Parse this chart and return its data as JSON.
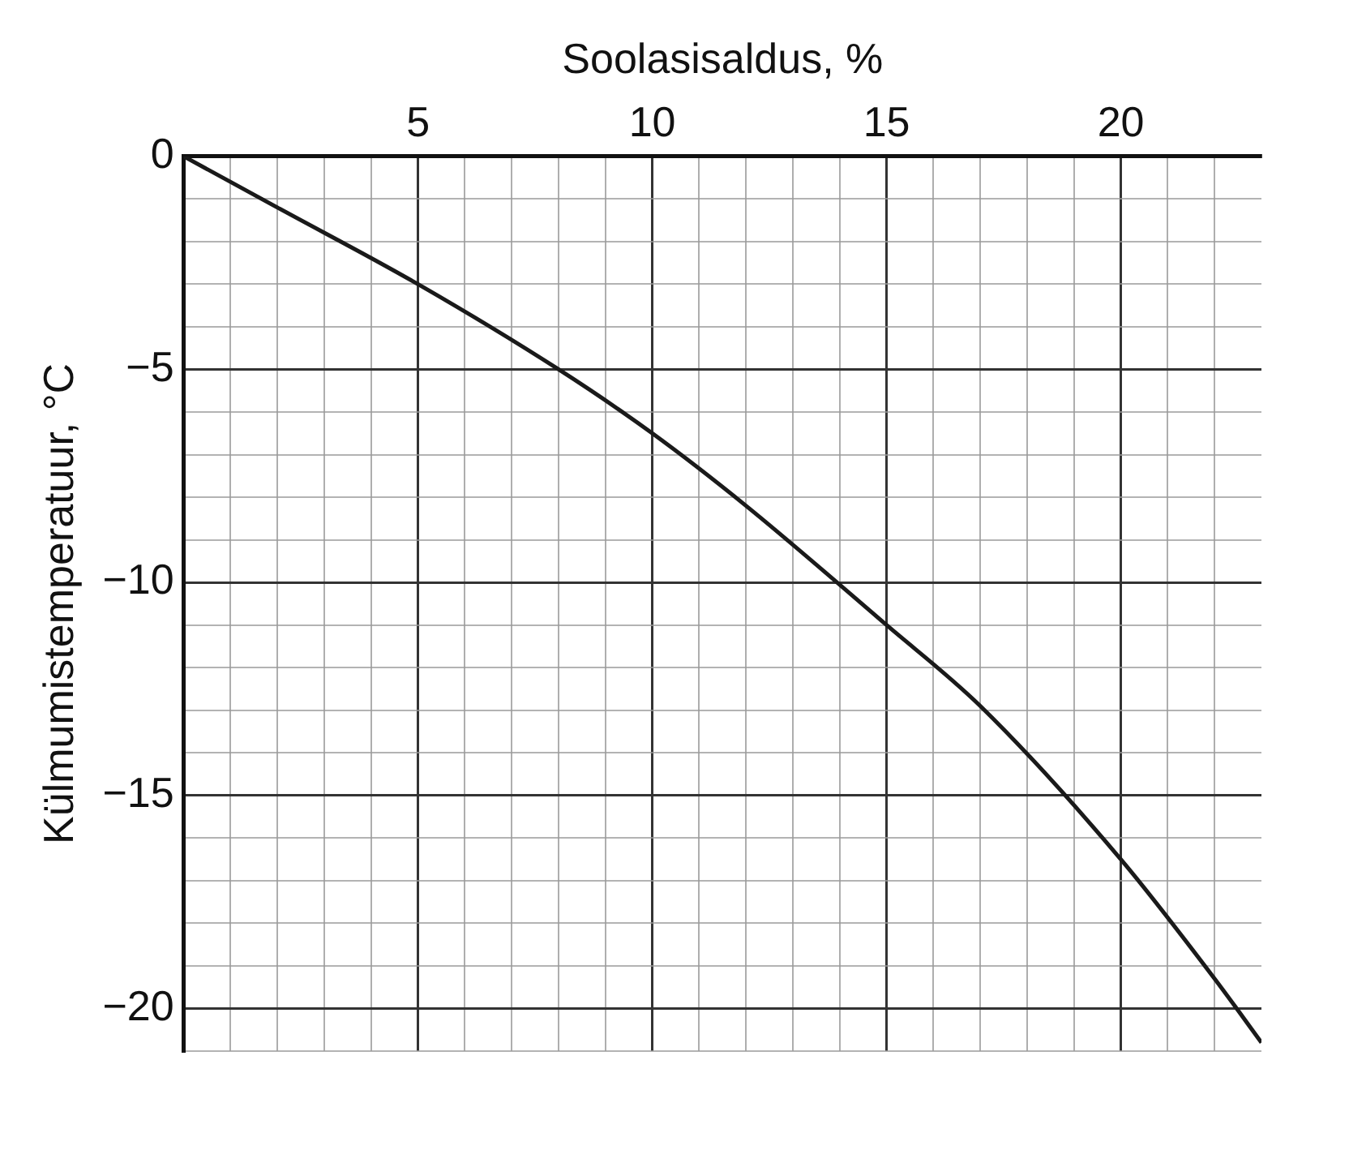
{
  "chart_data": {
    "type": "line",
    "xlabel": "Soolasisaldus, %",
    "ylabel": "Külmumistemperatuur, °C",
    "xlim": [
      0,
      23
    ],
    "ylim": [
      -21,
      0
    ],
    "xticks": [
      {
        "value": 1,
        "label": null
      },
      {
        "value": 2,
        "label": null
      },
      {
        "value": 3,
        "label": null
      },
      {
        "value": 4,
        "label": null
      },
      5,
      {
        "value": 6,
        "label": null
      },
      {
        "value": 7,
        "label": null
      },
      {
        "value": 8,
        "label": null
      },
      {
        "value": 9,
        "label": null
      },
      10,
      {
        "value": 11,
        "label": null
      },
      {
        "value": 12,
        "label": null
      },
      {
        "value": 13,
        "label": null
      },
      {
        "value": 14,
        "label": null
      },
      15,
      {
        "value": 16,
        "label": null
      },
      {
        "value": 17,
        "label": null
      },
      {
        "value": 18,
        "label": null
      },
      {
        "value": 19,
        "label": null
      },
      20,
      {
        "value": 21,
        "label": null
      },
      {
        "value": 22,
        "label": null
      }
    ],
    "yticks": [
      0,
      {
        "value": -1,
        "label": null
      },
      {
        "value": -2,
        "label": null
      },
      {
        "value": -3,
        "label": null
      },
      {
        "value": -4,
        "label": null
      },
      {
        "value": -5,
        "label": "−5"
      },
      {
        "value": -6,
        "label": null
      },
      {
        "value": -7,
        "label": null
      },
      {
        "value": -8,
        "label": null
      },
      {
        "value": -9,
        "label": null
      },
      {
        "value": -10,
        "label": "−10"
      },
      {
        "value": -11,
        "label": null
      },
      {
        "value": -12,
        "label": null
      },
      {
        "value": -13,
        "label": null
      },
      {
        "value": -14,
        "label": null
      },
      {
        "value": -15,
        "label": "−15"
      },
      {
        "value": -16,
        "label": null
      },
      {
        "value": -17,
        "label": null
      },
      {
        "value": -18,
        "label": null
      },
      {
        "value": -19,
        "label": null
      },
      {
        "value": -20,
        "label": "−20"
      },
      {
        "value": -21,
        "label": null
      }
    ],
    "series": [
      {
        "color": "#1a1a1a",
        "x": [
          0,
          2,
          5,
          8,
          10,
          12,
          15,
          17,
          20,
          22,
          23
        ],
        "values": [
          0,
          -1.2,
          -3,
          -5,
          -6.5,
          -8.2,
          -11,
          -12.9,
          -16.5,
          -19.3,
          -20.8
        ]
      }
    ],
    "grid": true,
    "legend": false,
    "marker": "none",
    "line_style": "solid"
  }
}
